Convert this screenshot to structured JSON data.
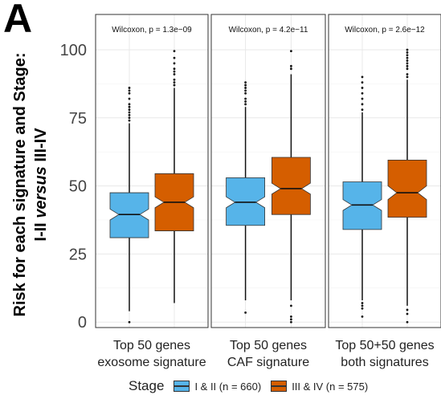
{
  "figure": {
    "panel_letter": "A",
    "ylabel_line1": "Risk for each signature and Stage:",
    "ylabel_line2_pre": "I-II ",
    "ylabel_line2_italic": "versus",
    "ylabel_line2_post": " III-IV",
    "legend_title": "Stage",
    "legend_items": [
      "I & II (n = 660)",
      "III & IV (n = 575)"
    ]
  },
  "colors": {
    "stage_1_2": "#56B4E9",
    "stage_3_4": "#D55E00",
    "panel_border": "#333333",
    "grid": "#e8e8e8"
  },
  "chart_data": {
    "type": "boxplot",
    "ylim": [
      -2,
      105
    ],
    "yticks": [
      0,
      25,
      50,
      75,
      100
    ],
    "grid": true,
    "legend_position": "bottom",
    "series": [
      {
        "name": "I & II (n = 660)",
        "color": "#56B4E9"
      },
      {
        "name": "III & IV (n = 575)",
        "color": "#D55E00"
      }
    ],
    "panels": [
      {
        "title": "Wilcoxon, p = 1.3e−09",
        "xlabel_line1": "Top 50 genes",
        "xlabel_line2": "exosome signature",
        "boxes": [
          {
            "series": "I & II (n = 660)",
            "q1": 31,
            "median": 39.5,
            "q3": 47.5,
            "notch_lo": 37.5,
            "notch_hi": 41.5,
            "whisker_low": 4,
            "whisker_high": 73,
            "outliers": [
              0,
              74,
              75,
              76,
              77,
              78,
              79,
              80,
              82,
              84,
              85,
              86
            ]
          },
          {
            "series": "III & IV (n = 575)",
            "q1": 33.5,
            "median": 44,
            "q3": 54.5,
            "notch_lo": 42,
            "notch_hi": 46,
            "whisker_low": 7,
            "whisker_high": 86,
            "outliers": [
              87,
              88,
              89,
              91,
              92,
              93,
              95,
              97,
              99.5
            ]
          }
        ]
      },
      {
        "title": "Wilcoxon, p = 4.2e−11",
        "xlabel_line1": "Top 50 genes",
        "xlabel_line2": "CAF signature",
        "boxes": [
          {
            "series": "I & II (n = 660)",
            "q1": 35.5,
            "median": 44,
            "q3": 53,
            "notch_lo": 42,
            "notch_hi": 46,
            "whisker_low": 8,
            "whisker_high": 79,
            "outliers": [
              3.5,
              80,
              81,
              82,
              84,
              85,
              86,
              87,
              88
            ]
          },
          {
            "series": "III & IV (n = 575)",
            "q1": 39.5,
            "median": 49,
            "q3": 60.5,
            "notch_lo": 47,
            "notch_hi": 51,
            "whisker_low": 8,
            "whisker_high": 91,
            "outliers": [
              0,
              1,
              2,
              6,
              93,
              94,
              99.5
            ]
          }
        ]
      },
      {
        "title": "Wilcoxon, p = 2.6e−12",
        "xlabel_line1": "Top 50+50 genes",
        "xlabel_line2": "both signatures",
        "boxes": [
          {
            "series": "I & II (n = 660)",
            "q1": 34,
            "median": 43,
            "q3": 51.5,
            "notch_lo": 41,
            "notch_hi": 45,
            "whisker_low": 8,
            "whisker_high": 77,
            "outliers": [
              2,
              5,
              6,
              7,
              78,
              80,
              82,
              84,
              86,
              88,
              90
            ]
          },
          {
            "series": "III & IV (n = 575)",
            "q1": 38.5,
            "median": 47.5,
            "q3": 59.5,
            "notch_lo": 45,
            "notch_hi": 50,
            "whisker_low": 6,
            "whisker_high": 89,
            "outliers": [
              0,
              3,
              4.5,
              90,
              91,
              93,
              94,
              95,
              96,
              97,
              98,
              99,
              100
            ]
          }
        ]
      }
    ]
  }
}
